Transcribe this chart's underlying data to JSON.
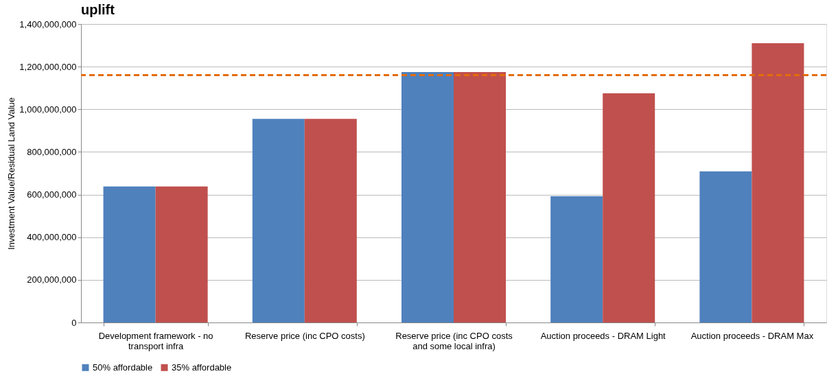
{
  "chart_data": {
    "type": "bar",
    "title": "uplift",
    "ylabel": "Investment Value/Residual Land Value",
    "categories": [
      "Development framework - no transport infra",
      "Reserve price (inc CPO costs)",
      "Reserve price (inc CPO costs and some local infra)",
      "Auction proceeds - DRAM Light",
      "Auction proceeds - DRAM Max"
    ],
    "series": [
      {
        "name": "50% affordable",
        "color": "#4f81bd",
        "values": [
          638000000,
          955000000,
          1175000000,
          592000000,
          709000000
        ]
      },
      {
        "name": "35% affordable",
        "color": "#c0504d",
        "values": [
          638000000,
          955000000,
          1175000000,
          1075000000,
          1310000000
        ]
      }
    ],
    "ylim": [
      0,
      1400000000
    ],
    "yticks": [
      0,
      {
        "value": 200000000,
        "label": "200,000,000"
      },
      {
        "value": 400000000,
        "label": "400,000,000"
      },
      {
        "value": 600000000,
        "label": "600,000,000"
      },
      {
        "value": 800000000,
        "label": "800,000,000"
      },
      {
        "value": 1000000000,
        "label": "1,000,000,000"
      },
      {
        "value": 1200000000,
        "label": "1,200,000,000"
      },
      {
        "value": 1400000000,
        "label": "1,400,000,000"
      }
    ],
    "ref_lines": [
      {
        "axis": "y",
        "value": 1160000000,
        "color": "#e46c0a",
        "line_style": "dashed"
      }
    ],
    "grid": "y",
    "legend": "bottom"
  }
}
